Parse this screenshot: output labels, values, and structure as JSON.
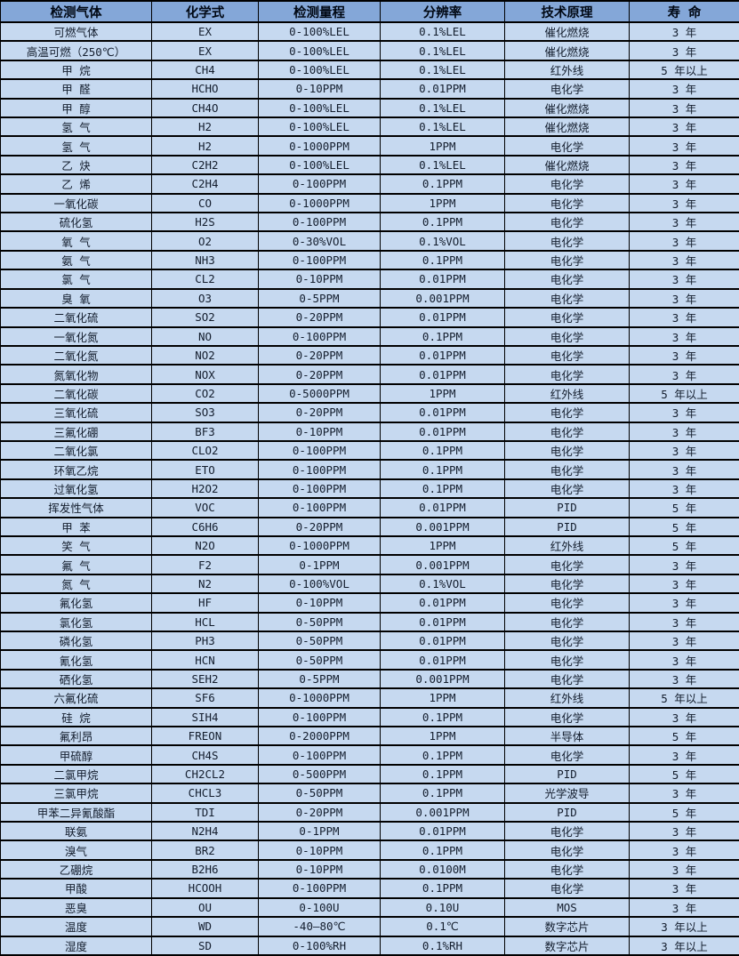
{
  "colors": {
    "header_background": "#84A7D8",
    "row_background": "#C6D9F0",
    "border": "#000000",
    "header_text": "#000814",
    "cell_text": "#141E2E"
  },
  "table": {
    "columns": [
      "检测气体",
      "化学式",
      "检测量程",
      "分辨率",
      "技术原理",
      "寿 命"
    ],
    "column_keys": [
      "gas",
      "formula",
      "range",
      "resolution",
      "principle",
      "lifespan"
    ],
    "rows": [
      [
        "可燃气体",
        "EX",
        "0-100%LEL",
        "0.1%LEL",
        "催化燃烧",
        "3 年"
      ],
      [
        "高温可燃（250℃）",
        "EX",
        "0-100%LEL",
        "0.1%LEL",
        "催化燃烧",
        "3 年"
      ],
      [
        "甲 烷",
        "CH4",
        "0-100%LEL",
        "0.1%LEL",
        "红外线",
        "5 年以上"
      ],
      [
        "甲 醛",
        "HCHO",
        "0-10PPM",
        "0.01PPM",
        "电化学",
        "3 年"
      ],
      [
        "甲 醇",
        "CH4O",
        "0-100%LEL",
        "0.1%LEL",
        "催化燃烧",
        "3 年"
      ],
      [
        "氢 气",
        "H2",
        "0-100%LEL",
        "0.1%LEL",
        "催化燃烧",
        "3 年"
      ],
      [
        "氢 气",
        "H2",
        "0-1000PPM",
        "1PPM",
        "电化学",
        "3 年"
      ],
      [
        "乙 炔",
        "C2H2",
        "0-100%LEL",
        "0.1%LEL",
        "催化燃烧",
        "3 年"
      ],
      [
        "乙 烯",
        "C2H4",
        "0-100PPM",
        "0.1PPM",
        "电化学",
        "3 年"
      ],
      [
        "一氧化碳",
        "CO",
        "0-1000PPM",
        "1PPM",
        "电化学",
        "3 年"
      ],
      [
        "硫化氢",
        "H2S",
        "0-100PPM",
        "0.1PPM",
        "电化学",
        "3 年"
      ],
      [
        "氧 气",
        "O2",
        "0-30%VOL",
        "0.1%VOL",
        "电化学",
        "3 年"
      ],
      [
        "氨 气",
        "NH3",
        "0-100PPM",
        "0.1PPM",
        "电化学",
        "3 年"
      ],
      [
        "氯 气",
        "CL2",
        "0-10PPM",
        "0.01PPM",
        "电化学",
        "3 年"
      ],
      [
        "臭 氧",
        "O3",
        "0-5PPM",
        "0.001PPM",
        "电化学",
        "3 年"
      ],
      [
        "二氧化硫",
        "SO2",
        "0-20PPM",
        "0.01PPM",
        "电化学",
        "3 年"
      ],
      [
        "一氧化氮",
        "NO",
        "0-100PPM",
        "0.1PPM",
        "电化学",
        "3 年"
      ],
      [
        "二氧化氮",
        "NO2",
        "0-20PPM",
        "0.01PPM",
        "电化学",
        "3 年"
      ],
      [
        "氮氧化物",
        "NOX",
        "0-20PPM",
        "0.01PPM",
        "电化学",
        "3 年"
      ],
      [
        "二氧化碳",
        "CO2",
        "0-5000PPM",
        "1PPM",
        "红外线",
        "5 年以上"
      ],
      [
        "三氧化硫",
        "SO3",
        "0-20PPM",
        "0.01PPM",
        "电化学",
        "3 年"
      ],
      [
        "三氟化硼",
        "BF3",
        "0-10PPM",
        "0.01PPM",
        "电化学",
        "3 年"
      ],
      [
        "二氧化氯",
        "CLO2",
        "0-100PPM",
        "0.1PPM",
        "电化学",
        "3 年"
      ],
      [
        "环氧乙烷",
        "ETO",
        "0-100PPM",
        "0.1PPM",
        "电化学",
        "3 年"
      ],
      [
        "过氧化氢",
        "H2O2",
        "0-100PPM",
        "0.1PPM",
        "电化学",
        "3 年"
      ],
      [
        "挥发性气体",
        "VOC",
        "0-100PPM",
        "0.01PPM",
        "PID",
        "5 年"
      ],
      [
        "甲 苯",
        "C6H6",
        "0-20PPM",
        "0.001PPM",
        "PID",
        "5 年"
      ],
      [
        "笑 气",
        "N2O",
        "0-1000PPM",
        "1PPM",
        "红外线",
        "5 年"
      ],
      [
        "氟 气",
        "F2",
        "0-1PPM",
        "0.001PPM",
        "电化学",
        "3 年"
      ],
      [
        "氮 气",
        "N2",
        "0-100%VOL",
        "0.1%VOL",
        "电化学",
        "3 年"
      ],
      [
        "氟化氢",
        "HF",
        "0-10PPM",
        "0.01PPM",
        "电化学",
        "3 年"
      ],
      [
        "氯化氢",
        "HCL",
        "0-50PPM",
        "0.01PPM",
        "电化学",
        "3 年"
      ],
      [
        "磷化氢",
        "PH3",
        "0-50PPM",
        "0.01PPM",
        "电化学",
        "3 年"
      ],
      [
        "氰化氢",
        "HCN",
        "0-50PPM",
        "0.01PPM",
        "电化学",
        "3 年"
      ],
      [
        "硒化氢",
        "SEH2",
        "0-5PPM",
        "0.001PPM",
        "电化学",
        "3 年"
      ],
      [
        "六氟化硫",
        "SF6",
        "0-1000PPM",
        "1PPM",
        "红外线",
        "5 年以上"
      ],
      [
        "硅 烷",
        "SIH4",
        "0-100PPM",
        "0.1PPM",
        "电化学",
        "3 年"
      ],
      [
        "氟利昂",
        "FREON",
        "0-2000PPM",
        "1PPM",
        "半导体",
        "5 年"
      ],
      [
        "甲硫醇",
        "CH4S",
        "0-100PPM",
        "0.1PPM",
        "电化学",
        "3 年"
      ],
      [
        "二氯甲烷",
        "CH2CL2",
        "0-500PPM",
        "0.1PPM",
        "PID",
        "5 年"
      ],
      [
        "三氯甲烷",
        "CHCL3",
        "0-50PPM",
        "0.1PPM",
        "光学波导",
        "3 年"
      ],
      [
        "甲苯二异氰酸酯",
        "TDI",
        "0-20PPM",
        "0.001PPM",
        "PID",
        "5 年"
      ],
      [
        "联氨",
        "N2H4",
        "0-1PPM",
        "0.01PPM",
        "电化学",
        "3 年"
      ],
      [
        "溴气",
        "BR2",
        "0-10PPM",
        "0.1PPM",
        "电化学",
        "3 年"
      ],
      [
        "乙硼烷",
        "B2H6",
        "0-10PPM",
        "0.0100M",
        "电化学",
        "3 年"
      ],
      [
        "甲酸",
        "HCOOH",
        "0-100PPM",
        "0.1PPM",
        "电化学",
        "3 年"
      ],
      [
        "恶臭",
        "OU",
        "0-100U",
        "0.10U",
        "MOS",
        "3 年"
      ],
      [
        "温度",
        "WD",
        "-40—80℃",
        "0.1℃",
        "数字芯片",
        "3 年以上"
      ],
      [
        "湿度",
        "SD",
        "0-100%RH",
        "0.1%RH",
        "数字芯片",
        "3 年以上"
      ]
    ]
  }
}
